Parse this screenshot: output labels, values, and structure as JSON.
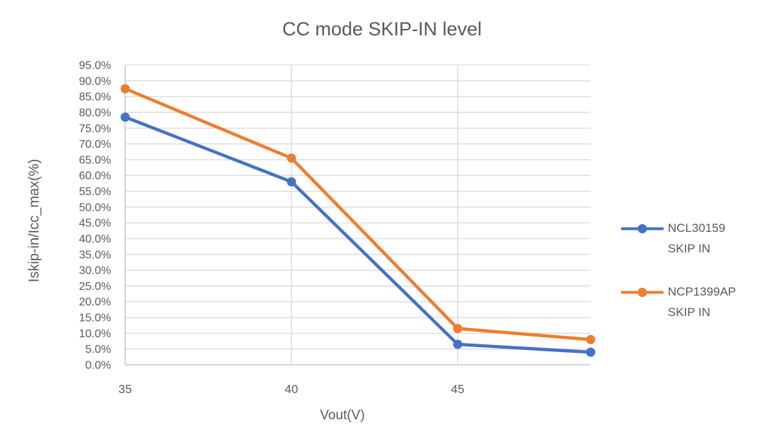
{
  "title": "CC mode SKIP-IN level",
  "colors": {
    "series_blue": "#4472C4",
    "series_orange": "#ED7D31",
    "text": "#595959",
    "gridline": "#D9D9D9",
    "axisline": "#BFBFBF",
    "background": "#FFFFFF"
  },
  "chart_data": {
    "type": "line",
    "title": "CC mode SKIP-IN level",
    "xlabel": "Vout(V)",
    "ylabel": "Iskip-in/Icc_max(%)",
    "x": [
      35,
      40,
      45,
      49
    ],
    "series": [
      {
        "name": "NCL30159 SKIP IN",
        "color": "#4472C4",
        "values": [
          78.5,
          58.0,
          6.5,
          4.0
        ]
      },
      {
        "name": "NCP1399AP SKIP IN",
        "color": "#ED7D31",
        "values": [
          87.5,
          65.5,
          11.5,
          8.0
        ]
      }
    ],
    "xlim": [
      35,
      49
    ],
    "ylim": [
      0,
      95
    ],
    "ytick_step": 5,
    "ytick_suffix": "%",
    "ytick_decimals": 1,
    "xticks": [
      35,
      40,
      45
    ],
    "grid": true,
    "legend_position": "right",
    "marker": "circle"
  },
  "legend": {
    "entries": [
      {
        "lines": [
          "NCL30159",
          "SKIP IN"
        ],
        "color": "#4472C4"
      },
      {
        "lines": [
          "NCP1399AP",
          "SKIP IN"
        ],
        "color": "#ED7D31"
      }
    ]
  }
}
